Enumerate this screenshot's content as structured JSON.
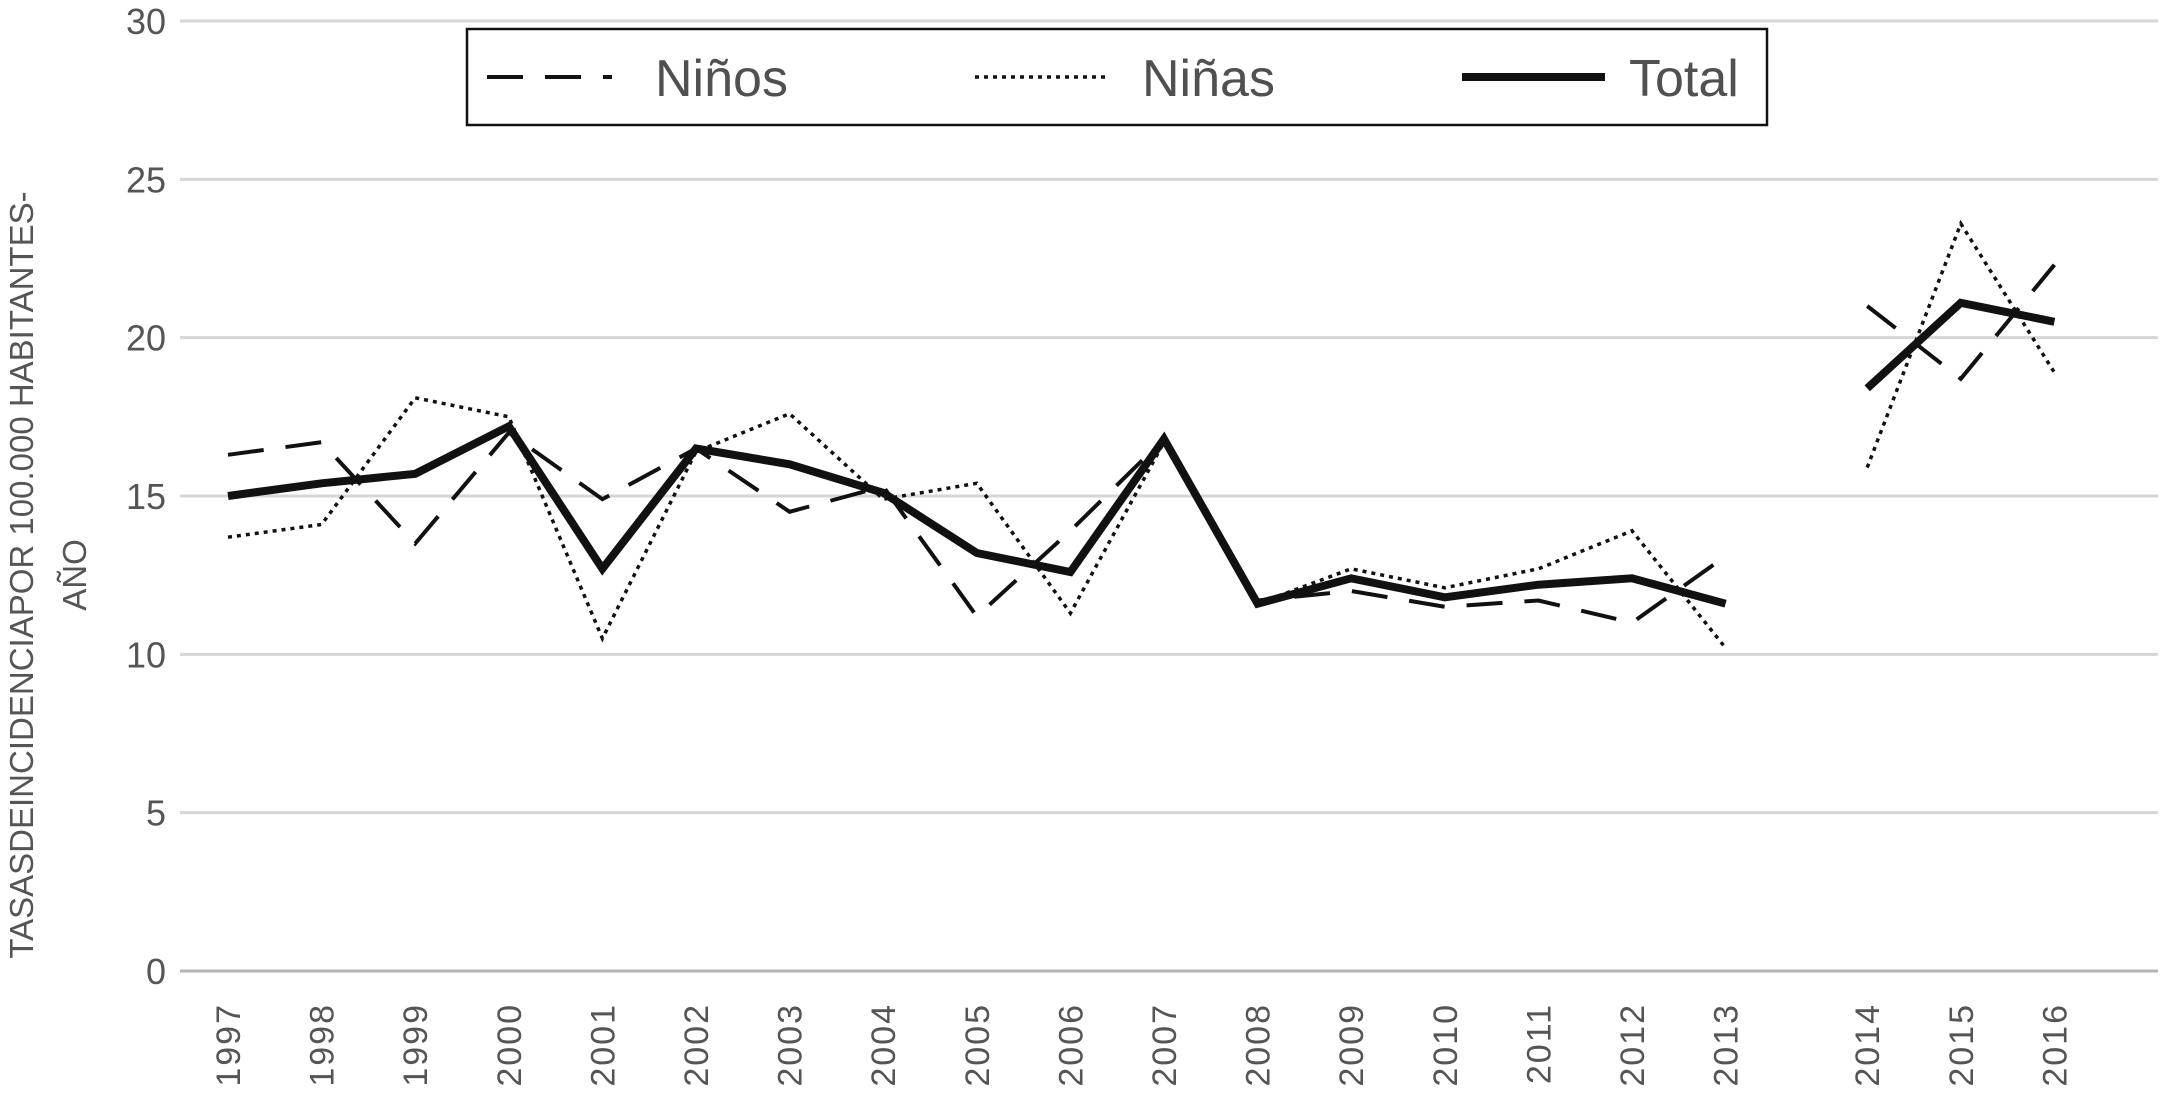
{
  "chart_data": {
    "type": "line",
    "title": "",
    "ylabel_lines": [
      "TASASDEINCIDENCIAPOR 100.000 HABITANTES-",
      "AÑO"
    ],
    "xlabel": "",
    "ylim": [
      0,
      30
    ],
    "yticks": [
      "0",
      "5",
      "10",
      "15",
      "20",
      "25",
      "30"
    ],
    "grid": true,
    "legend_position": "top",
    "categories": [
      "1997",
      "1998",
      "1999",
      "2000",
      "2001",
      "2002",
      "2003",
      "2004",
      "2005",
      "2006",
      "2007",
      "2008",
      "2009",
      "2010",
      "2011",
      "2012",
      "2013",
      "2014",
      "2015",
      "2016"
    ],
    "series": [
      {
        "name": "Niños",
        "style": "dashed",
        "color": "#111111",
        "values": [
          16.3,
          16.7,
          13.5,
          17.0,
          14.9,
          16.5,
          14.5,
          15.3,
          11.2,
          13.9,
          16.8,
          11.7,
          12.0,
          11.5,
          11.7,
          11.0,
          13.1,
          21.0,
          18.7,
          22.3
        ]
      },
      {
        "name": "Niñas",
        "style": "dotted",
        "color": "#111111",
        "values": [
          13.7,
          14.1,
          18.1,
          17.5,
          10.5,
          16.4,
          17.6,
          14.9,
          15.4,
          11.3,
          16.7,
          11.6,
          12.7,
          12.1,
          12.7,
          13.9,
          10.2,
          15.9,
          23.6,
          18.9
        ]
      },
      {
        "name": "Total",
        "style": "solid",
        "color": "#111111",
        "values": [
          15.0,
          15.4,
          15.7,
          17.2,
          12.7,
          16.5,
          16.0,
          15.1,
          13.2,
          12.6,
          16.8,
          11.6,
          12.4,
          11.8,
          12.2,
          12.4,
          11.6,
          18.4,
          21.1,
          20.5
        ]
      }
    ],
    "segments": [
      {
        "from": "1997",
        "to": "2013"
      },
      {
        "from": "2014",
        "to": "2016"
      }
    ]
  }
}
